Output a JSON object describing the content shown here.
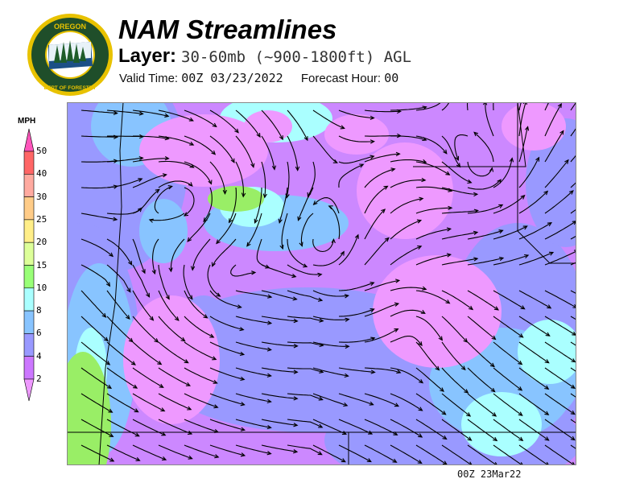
{
  "header": {
    "title": "NAM Streamlines",
    "layer_label": "Layer:",
    "layer_value": "30-60mb (~900-1800ft) AGL",
    "valid_label": "Valid Time:",
    "valid_value": "00Z 03/23/2022",
    "forecast_label": "Forecast Hour:",
    "forecast_value": "00"
  },
  "logo": {
    "top_text": "OREGON",
    "bottom_text": "DEPARTMENT OF FORESTRY",
    "ring_color": "#e8c200",
    "field_color": "#1f4e2a"
  },
  "legend": {
    "unit": "MPH",
    "ticks": [
      "50",
      "40",
      "30",
      "25",
      "20",
      "15",
      "10",
      "8",
      "6",
      "4",
      "2"
    ],
    "over_color": "#ff55bb",
    "under_color": "#ee99ff",
    "colors": [
      "#ff6666",
      "#ffaaa0",
      "#ffcc88",
      "#ffee88",
      "#ddff99",
      "#99ff77",
      "#aaffff",
      "#88c4ff",
      "#9999ff",
      "#cc77ff"
    ]
  },
  "map": {
    "fill_colors": {
      "base": "#cc88ff",
      "blue": "#9999ff",
      "lightblue": "#88c4ff",
      "cyan": "#aaffff",
      "green": "#99ee66",
      "pink": "#ee99ff"
    }
  },
  "footer": {
    "stamp": "00Z 23Mar22"
  }
}
